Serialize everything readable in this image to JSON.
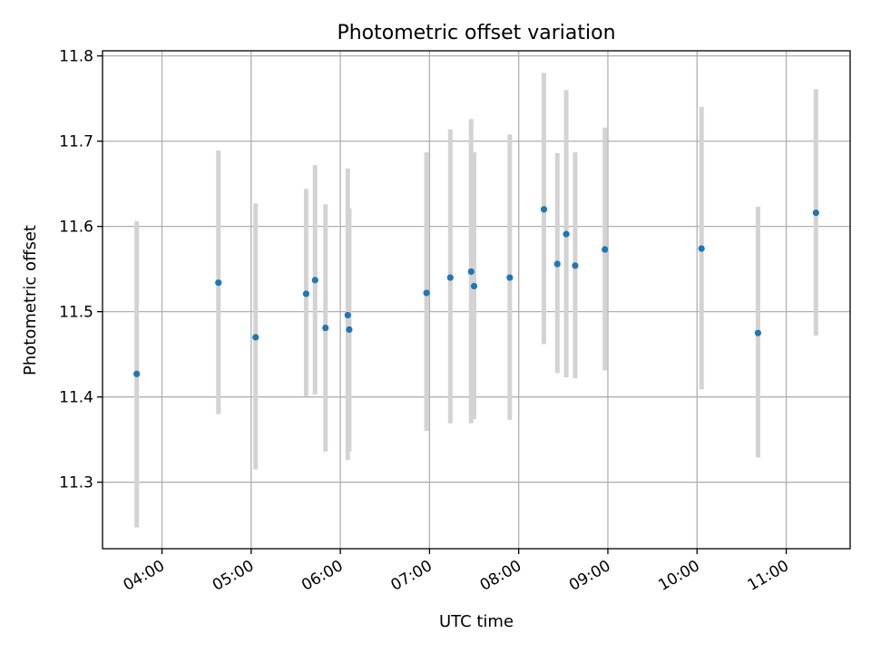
{
  "chart_data": {
    "type": "scatter",
    "title": "Photometric offset variation",
    "xlabel": "UTC time",
    "ylabel": "Photometric offset",
    "xlim": [
      "03:20",
      "11:43"
    ],
    "ylim": [
      11.222,
      11.806
    ],
    "x_ticks": [
      "04:00",
      "05:00",
      "06:00",
      "07:00",
      "08:00",
      "09:00",
      "10:00",
      "11:00"
    ],
    "y_ticks": [
      "11.3",
      "11.4",
      "11.5",
      "11.6",
      "11.7",
      "11.8"
    ],
    "grid": true,
    "series": [
      {
        "marker_color": "#1f77b4",
        "errorbar_color": "#d3d3d3",
        "points": [
          {
            "x": "03:43",
            "y": 11.427,
            "yerr_low": 11.247,
            "yerr_high": 11.606
          },
          {
            "x": "04:38",
            "y": 11.534,
            "yerr_low": 11.38,
            "yerr_high": 11.689
          },
          {
            "x": "05:03",
            "y": 11.47,
            "yerr_low": 11.315,
            "yerr_high": 11.627
          },
          {
            "x": "05:37",
            "y": 11.521,
            "yerr_low": 11.401,
            "yerr_high": 11.644
          },
          {
            "x": "05:43",
            "y": 11.537,
            "yerr_low": 11.403,
            "yerr_high": 11.672
          },
          {
            "x": "05:50",
            "y": 11.481,
            "yerr_low": 11.336,
            "yerr_high": 11.626
          },
          {
            "x": "06:05",
            "y": 11.496,
            "yerr_low": 11.326,
            "yerr_high": 11.668
          },
          {
            "x": "06:06",
            "y": 11.479,
            "yerr_low": 11.336,
            "yerr_high": 11.621
          },
          {
            "x": "06:58",
            "y": 11.522,
            "yerr_low": 11.36,
            "yerr_high": 11.687
          },
          {
            "x": "07:14",
            "y": 11.54,
            "yerr_low": 11.369,
            "yerr_high": 11.714
          },
          {
            "x": "07:28",
            "y": 11.547,
            "yerr_low": 11.369,
            "yerr_high": 11.726
          },
          {
            "x": "07:30",
            "y": 11.53,
            "yerr_low": 11.374,
            "yerr_high": 11.687
          },
          {
            "x": "07:54",
            "y": 11.54,
            "yerr_low": 11.373,
            "yerr_high": 11.708
          },
          {
            "x": "08:17",
            "y": 11.62,
            "yerr_low": 11.462,
            "yerr_high": 11.78
          },
          {
            "x": "08:26",
            "y": 11.556,
            "yerr_low": 11.428,
            "yerr_high": 11.686
          },
          {
            "x": "08:32",
            "y": 11.591,
            "yerr_low": 11.423,
            "yerr_high": 11.76
          },
          {
            "x": "08:38",
            "y": 11.554,
            "yerr_low": 11.422,
            "yerr_high": 11.687
          },
          {
            "x": "08:58",
            "y": 11.573,
            "yerr_low": 11.431,
            "yerr_high": 11.716
          },
          {
            "x": "10:03",
            "y": 11.574,
            "yerr_low": 11.409,
            "yerr_high": 11.74
          },
          {
            "x": "10:41",
            "y": 11.475,
            "yerr_low": 11.329,
            "yerr_high": 11.623
          },
          {
            "x": "11:20",
            "y": 11.616,
            "yerr_low": 11.472,
            "yerr_high": 11.761
          }
        ]
      }
    ]
  }
}
